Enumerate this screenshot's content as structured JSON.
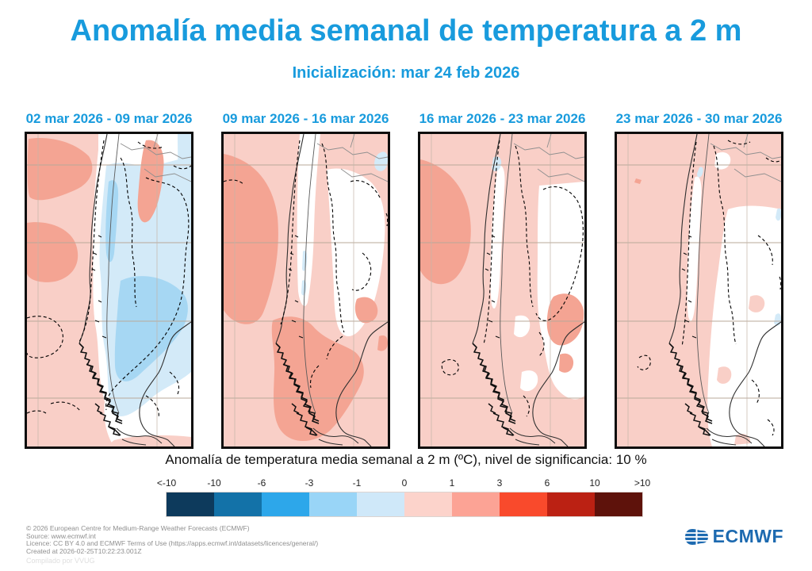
{
  "title": "Anomalía media semanal de temperatura a 2 m",
  "subtitle": "Inicialización: mar 24 feb 2026",
  "colors": {
    "accent": "#189bdd",
    "logo_blue": "#1d6ab0",
    "map_pink": "#f9cfc7",
    "map_salmon": "#f4a493",
    "map_blue_pale": "#d3eaf8",
    "map_blue_light": "#a6d7f3"
  },
  "panels": [
    {
      "label": "02 mar 2026 - 09 mar 2026"
    },
    {
      "label": "09 mar 2026 - 16 mar 2026"
    },
    {
      "label": "16 mar 2026 - 23 mar 2026"
    },
    {
      "label": "23 mar 2026 - 30 mar 2026"
    }
  ],
  "caption": "Anomalía de temperatura media semanal a 2 m (ºC), nivel de significancia: 10 %",
  "colorbar": {
    "tick_labels": [
      "<-10",
      "-10",
      "-6",
      "-3",
      "-1",
      "0",
      "1",
      "3",
      "6",
      "10",
      ">10"
    ],
    "colors": [
      "#0d3a5c",
      "#1372a8",
      "#2da7ea",
      "#99d5f7",
      "#cfe8f9",
      "#fcd3cb",
      "#fca395",
      "#f94a2c",
      "#bb2113",
      "#5e120b"
    ]
  },
  "footer": {
    "line1": "© 2026 European Centre for Medium-Range Weather Forecasts (ECMWF)",
    "line2": "Source: www.ecmwf.int",
    "line3": "Licence: CC BY 4.0 and ECMWF Terms of Use (https://apps.ecmwf.int/datasets/licences/general/)",
    "line4": "Created at 2026-02-25T10:22:23.001Z",
    "compiled": "Compilado por VVUG"
  },
  "logo": {
    "text": "ECMWF"
  },
  "chart_data": {
    "type": "heatmap",
    "title": "Anomalía media semanal de temperatura a 2 m",
    "subtitle": "Inicialización: mar 24 feb 2026",
    "variable": "Anomalía de temperatura media semanal a 2 m (ºC)",
    "significance_level": "10 %",
    "region": "Southern South America (Chile / Argentina and adjacent oceans)",
    "legend": {
      "position": "bottom",
      "unit": "ºC",
      "tick_labels": [
        "<-10",
        "-10",
        "-6",
        "-3",
        "-1",
        "0",
        "1",
        "3",
        "6",
        "10",
        ">10"
      ],
      "bin_edges": [
        -10,
        -6,
        -3,
        -1,
        0,
        1,
        3,
        6,
        10
      ],
      "bin_colors": [
        "#0d3a5c",
        "#1372a8",
        "#2da7ea",
        "#99d5f7",
        "#cfe8f9",
        "#fcd3cb",
        "#fca395",
        "#f94a2c",
        "#bb2113",
        "#5e120b"
      ]
    },
    "panels": [
      {
        "period": "02 mar 2026 - 09 mar 2026",
        "anomaly_pattern": "Warm anomaly 0 to 1 ºC over Pacific and northwest with 1 to 3 ºC patches; cold anomaly -1 to 0 and -3 to -1 ºC over central-southern Chile and Argentina (large blue region); dashed significance contours around both centers"
      },
      {
        "period": "09 mar 2026 - 16 mar 2026",
        "anomaly_pattern": "Warm anomaly 0 to 1 ºC almost everywhere; 1 to 3 ºC over the west Pacific patch and over Patagonia/southern cone; near-neutral white band along the Andes; tiny cool speck at the northeast corner"
      },
      {
        "period": "16 mar 2026 - 23 mar 2026",
        "anomaly_pattern": "Weak warm anomaly 0 to 1 ºC over most of the domain; 1 to 3 ºC patches over the northwest Pacific and east-central Argentina; neutral white patches along the Andes and central Argentina"
      },
      {
        "period": "23 mar 2026 - 30 mar 2026",
        "anomaly_pattern": "Weak warm anomaly 0 to 1 ºC over the Pacific and the north; near-neutral (white) over much of central and southern Argentina; a few tiny cool specks near the eastern edge"
      }
    ]
  }
}
